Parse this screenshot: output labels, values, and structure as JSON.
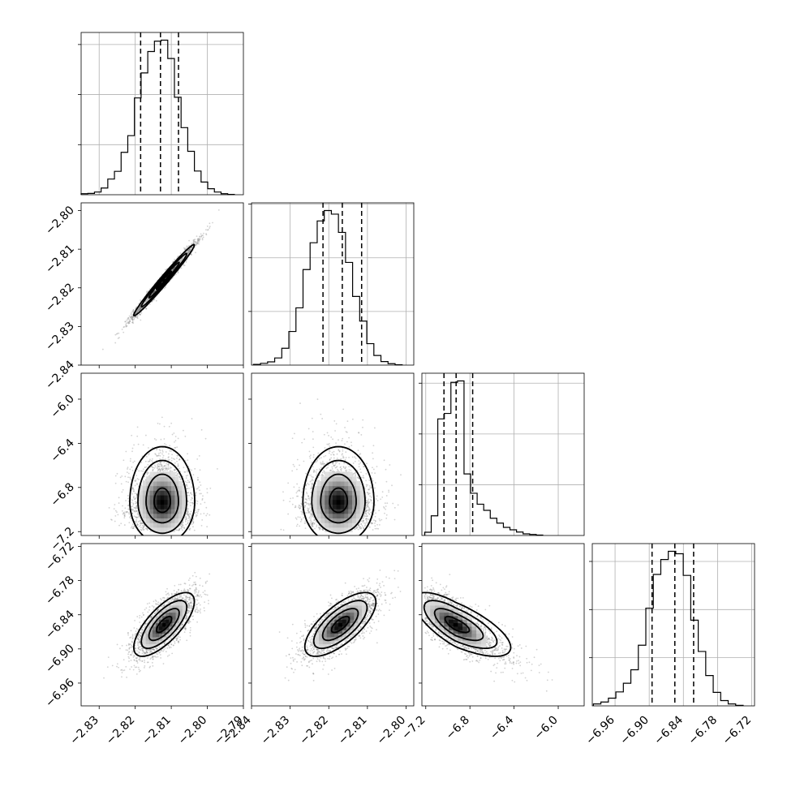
{
  "chart_data": {
    "type": "corner",
    "title": "",
    "parameters": [
      {
        "name": "",
        "display_range": [
          -2.835,
          -2.79
        ],
        "histogram": {
          "edges": [
            -2.835,
            -2.7925
          ],
          "counts": [
            0.3,
            0.4,
            0.8,
            2.0,
            4.7,
            7.0,
            12.7,
            17.7,
            29.0,
            36.5,
            42.9,
            46.0,
            46.3,
            40.8,
            29.2,
            20.1,
            13.0,
            7.1,
            3.8,
            1.8,
            0.8,
            0.3,
            0.1
          ]
        },
        "quantiles": [
          -2.8185,
          -2.813,
          -2.808
        ]
      },
      {
        "name": "",
        "display_range": [
          -2.84,
          -2.798
        ],
        "histogram": {
          "edges": [
            -2.8395,
            -2.801
          ],
          "counts": [
            0.2,
            0.5,
            0.9,
            2.0,
            4.7,
            9.4,
            16.0,
            26.7,
            34.2,
            40.3,
            43.2,
            42.2,
            37.1,
            28.7,
            19.2,
            12.3,
            6.0,
            2.7,
            1.0,
            0.4,
            0.1
          ]
        },
        "quantiles": [
          -2.8215,
          -2.8165,
          -2.8115
        ]
      },
      {
        "name": "",
        "display_range": [
          -7.235,
          -5.765
        ],
        "histogram": {
          "edges": [
            -7.21,
            -6.14
          ],
          "counts": [
            1.6,
            9.7,
            57.4,
            60.1,
            75.4,
            76.1,
            30.3,
            20.8,
            15.4,
            12.4,
            8.5,
            6.1,
            4.0,
            2.8,
            1.7,
            0.8,
            0.5,
            0.2
          ]
        },
        "quantiles": [
          -7.035,
          -6.925,
          -6.775
        ]
      },
      {
        "name": "",
        "display_range": [
          -7.0,
          -6.715
        ],
        "histogram": {
          "edges": [
            -6.998,
            -6.735
          ],
          "counts": [
            0.4,
            0.8,
            1.6,
            2.9,
            4.7,
            7.5,
            12.6,
            20.3,
            27.3,
            30.4,
            32.1,
            31.6,
            27.1,
            17.8,
            11.3,
            6.3,
            2.8,
            1.1,
            0.4,
            0.1
          ]
        },
        "quantiles": [
          -6.895,
          -6.855,
          -6.822
        ]
      }
    ],
    "ticks": [
      [
        -2.83,
        -2.82,
        -2.81,
        -2.8,
        -2.79
      ],
      [
        -2.84,
        -2.83,
        -2.82,
        -2.81,
        -2.8
      ],
      [
        -7.2,
        -6.8,
        -6.4,
        -6.0
      ],
      [
        -6.96,
        -6.9,
        -6.84,
        -6.78,
        -6.72
      ]
    ],
    "tick_labels": [
      [
        "−2.83",
        "−2.82",
        "−2.81",
        "−2.80",
        "−2.79"
      ],
      [
        "−2.84",
        "−2.83",
        "−2.82",
        "−2.81",
        "−2.80"
      ],
      [
        "−7.2",
        "−6.8",
        "−6.4",
        "−6.0"
      ],
      [
        "−6.96",
        "−6.90",
        "−6.84",
        "−6.78",
        "−6.72"
      ]
    ],
    "histogram_y_ticks": [
      [
        0,
        15,
        30,
        45
      ],
      [
        0,
        15,
        30,
        45
      ],
      [
        0,
        25,
        50,
        75
      ],
      [
        0,
        10,
        20,
        30
      ]
    ],
    "pairs": [
      {
        "x": 0,
        "y": 1,
        "center": [
          -2.812,
          -2.818
        ],
        "sigma": [
          0.0042,
          0.0046
        ],
        "rho": 0.985,
        "point_extent": [
          -2.8325,
          -2.8395,
          -2.7935,
          -2.7985
        ]
      },
      {
        "x": 0,
        "y": 2,
        "center": [
          -2.8125,
          -6.93
        ],
        "sigma": [
          0.0045,
          0.19
        ],
        "rho": 0.0,
        "skew": 0.9,
        "point_extent": [
          -2.8325,
          -7.19,
          -2.7955,
          -5.82
        ]
      },
      {
        "x": 1,
        "y": 2,
        "center": [
          -2.8175,
          -6.93
        ],
        "sigma": [
          0.0046,
          0.19
        ],
        "rho": 0.0,
        "skew": 0.9,
        "point_extent": [
          -2.839,
          -7.19,
          -2.8005,
          -5.82
        ]
      },
      {
        "x": 0,
        "y": 3,
        "center": [
          -2.812,
          -6.857
        ],
        "sigma": [
          0.0042,
          0.028
        ],
        "rho": 0.72,
        "point_extent": [
          -2.832,
          -6.995,
          -2.796,
          -6.74
        ]
      },
      {
        "x": 1,
        "y": 3,
        "center": [
          -2.817,
          -6.857
        ],
        "sigma": [
          0.0046,
          0.028
        ],
        "rho": 0.7,
        "point_extent": [
          -2.8385,
          -6.995,
          -2.801,
          -6.74
        ]
      },
      {
        "x": 2,
        "y": 3,
        "center": [
          -6.93,
          -6.857
        ],
        "sigma": [
          0.19,
          0.028
        ],
        "rho": -0.72,
        "skew": 0.9,
        "point_extent": [
          -7.21,
          -6.995,
          -5.8,
          -6.74
        ]
      }
    ],
    "contour_levels_sigma": [
      0.5,
      1.0,
      1.5,
      2.0
    ],
    "colors": {
      "line": "#000000",
      "points": "#7f7f7f",
      "density_low": "#f2f2f2",
      "density_high": "#000000",
      "grid": "#b0b0b0"
    },
    "grid": true
  }
}
